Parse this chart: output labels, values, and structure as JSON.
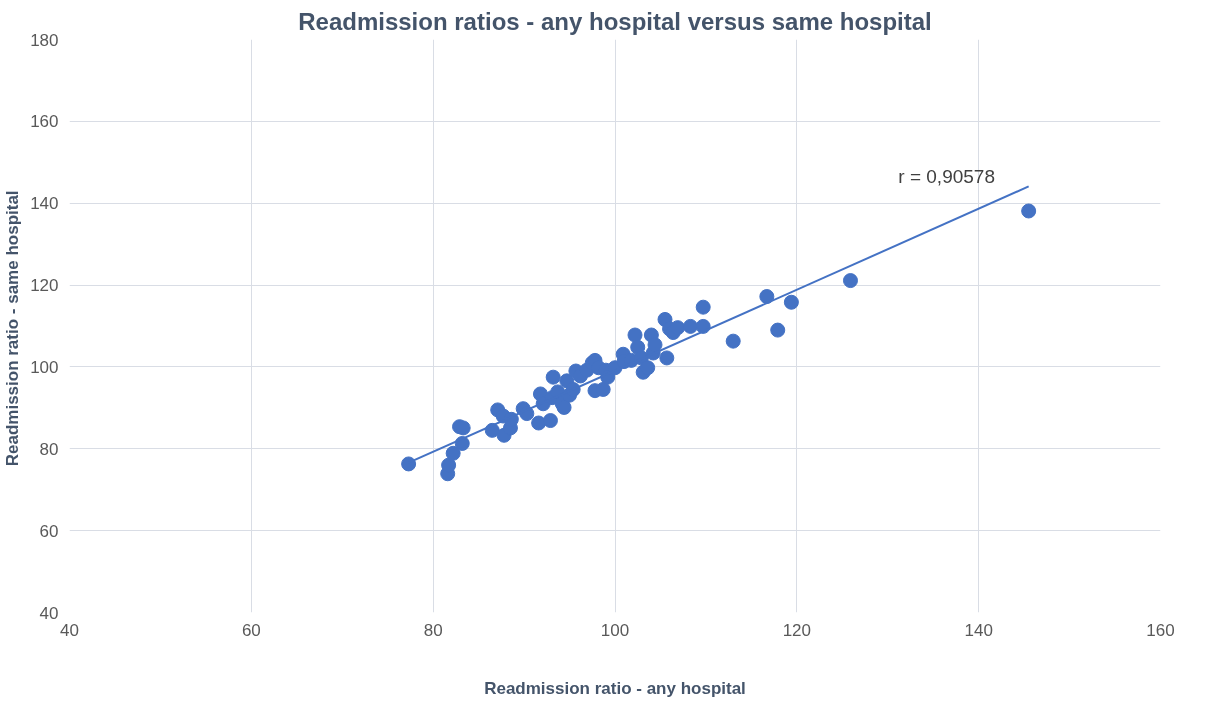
{
  "chart_data": {
    "type": "scatter",
    "title": "Readmission ratios - any hospital versus same hospital",
    "xlabel": "Readmission ratio - any hospital",
    "ylabel": "Readmission ratio -  same hospital",
    "xlim": [
      40,
      160
    ],
    "xticks": [
      40,
      60,
      80,
      100,
      120,
      140,
      160
    ],
    "ylim": [
      40,
      180
    ],
    "yticks": [
      40,
      60,
      80,
      100,
      120,
      140,
      160,
      180
    ],
    "grid": true,
    "marker": "circle",
    "annotations": [
      "r  =  0,90578"
    ],
    "series": [
      {
        "color": "#4472c4",
        "x": [
          77.3,
          81.6,
          81.7,
          82.2,
          82.9,
          83.3,
          83.2,
          86.5,
          87.1,
          87.7,
          87.8,
          88.5,
          88.6,
          89.9,
          90.3,
          91.6,
          91.8,
          92.1,
          92.9,
          93.2,
          93.1,
          93.7,
          94.2,
          94.7,
          94.4,
          95.0,
          95.4,
          95.7,
          96.2,
          96.9,
          97.5,
          97.8,
          97.8,
          98.2,
          98.7,
          99.0,
          99.2,
          100.0,
          100.9,
          101.0,
          101.8,
          102.2,
          102.5,
          102.9,
          103.1,
          103.6,
          104.0,
          104.2,
          104.4,
          105.5,
          105.7,
          106.0,
          106.4,
          106.9,
          108.3,
          109.7,
          109.7,
          113.0,
          116.7,
          117.9,
          119.4,
          125.9,
          145.5
        ],
        "values": [
          76.3,
          73.9,
          76.0,
          78.9,
          85.4,
          85.1,
          81.3,
          84.5,
          89.5,
          88.0,
          83.3,
          85.1,
          87.2,
          89.8,
          88.6,
          86.3,
          93.4,
          91.0,
          86.9,
          97.5,
          92.5,
          93.9,
          91.0,
          96.6,
          90.1,
          93.1,
          94.5,
          99.0,
          97.8,
          99.2,
          101.0,
          101.6,
          94.2,
          99.8,
          94.5,
          99.2,
          97.5,
          99.8,
          103.1,
          101.3,
          101.6,
          107.8,
          104.8,
          102.2,
          98.7,
          99.8,
          107.8,
          103.4,
          105.4,
          111.6,
          102.2,
          109.3,
          108.4,
          109.6,
          109.9,
          109.9,
          114.6,
          106.3,
          117.2,
          109.0,
          115.8,
          121.1,
          138.1
        ]
      },
      {
        "type": "line",
        "marker": "none",
        "color": "#4472c4",
        "x": [
          77.3,
          145.5
        ],
        "values": [
          76.6,
          144.1
        ]
      }
    ]
  }
}
